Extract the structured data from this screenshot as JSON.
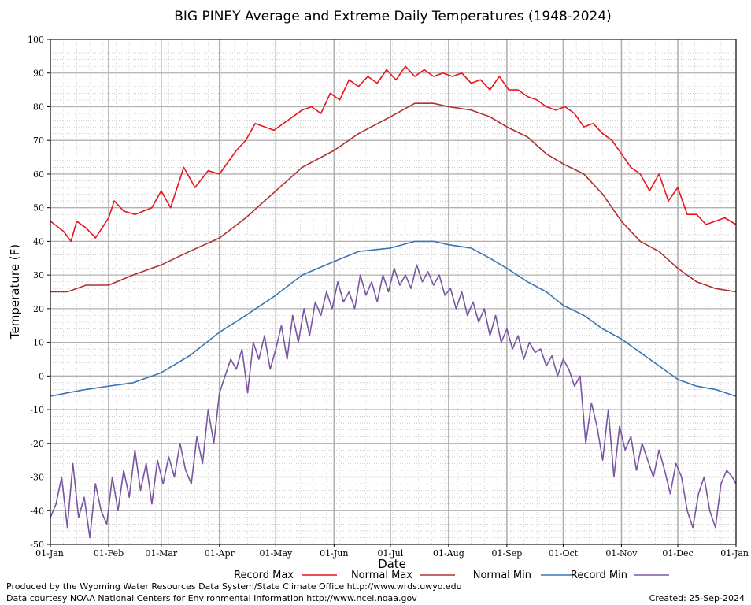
{
  "chart_data": {
    "type": "line",
    "title": "BIG PINEY Average and Extreme Daily Temperatures (1948-2024)",
    "xlabel": "Date",
    "ylabel": "Temperature (F)",
    "ylim": [
      -50,
      100
    ],
    "yticks": [
      -50,
      -40,
      -30,
      -20,
      -10,
      0,
      10,
      20,
      30,
      40,
      50,
      60,
      70,
      80,
      90,
      100
    ],
    "xlim": [
      1,
      366
    ],
    "xticks": [
      {
        "label": "01-Jan",
        "day": 1
      },
      {
        "label": "01-Feb",
        "day": 32
      },
      {
        "label": "01-Mar",
        "day": 60
      },
      {
        "label": "01-Apr",
        "day": 91
      },
      {
        "label": "01-May",
        "day": 121
      },
      {
        "label": "01-Jun",
        "day": 152
      },
      {
        "label": "01-Jul",
        "day": 182
      },
      {
        "label": "01-Aug",
        "day": 213
      },
      {
        "label": "01-Sep",
        "day": 244
      },
      {
        "label": "01-Oct",
        "day": 274
      },
      {
        "label": "01-Nov",
        "day": 305
      },
      {
        "label": "01-Dec",
        "day": 335
      },
      {
        "label": "01-Jan",
        "day": 366
      }
    ],
    "grid": true,
    "legend_position": "bottom",
    "series": [
      {
        "name": "Record Max",
        "color": "#e8141c",
        "x": [
          1,
          8,
          12,
          15,
          20,
          25,
          32,
          35,
          40,
          46,
          55,
          60,
          65,
          72,
          78,
          85,
          91,
          100,
          105,
          110,
          120,
          130,
          135,
          140,
          145,
          150,
          155,
          160,
          165,
          170,
          175,
          180,
          185,
          190,
          195,
          200,
          205,
          210,
          215,
          220,
          225,
          230,
          235,
          240,
          245,
          250,
          255,
          260,
          265,
          270,
          275,
          280,
          285,
          290,
          295,
          300,
          305,
          310,
          315,
          320,
          325,
          330,
          335,
          340,
          345,
          350,
          355,
          360,
          366
        ],
        "y": [
          46,
          43,
          40,
          46,
          44,
          41,
          47,
          52,
          49,
          48,
          50,
          55,
          50,
          62,
          56,
          61,
          60,
          67,
          70,
          75,
          73,
          77,
          79,
          80,
          78,
          84,
          82,
          88,
          86,
          89,
          87,
          91,
          88,
          92,
          89,
          91,
          89,
          90,
          89,
          90,
          87,
          88,
          85,
          89,
          85,
          85,
          83,
          82,
          80,
          79,
          80,
          78,
          74,
          75,
          72,
          70,
          66,
          62,
          60,
          55,
          60,
          52,
          56,
          48,
          48,
          45,
          46,
          47,
          45
        ]
      },
      {
        "name": "Normal Max",
        "color": "#b03030",
        "x": [
          1,
          10,
          20,
          32,
          45,
          60,
          75,
          91,
          105,
          121,
          135,
          152,
          165,
          182,
          195,
          205,
          213,
          225,
          235,
          244,
          255,
          265,
          274,
          285,
          295,
          305,
          315,
          325,
          335,
          345,
          355,
          366
        ],
        "y": [
          25,
          25,
          27,
          27,
          30,
          33,
          37,
          41,
          47,
          55,
          62,
          67,
          72,
          77,
          81,
          81,
          80,
          79,
          77,
          74,
          71,
          66,
          63,
          60,
          54,
          46,
          40,
          37,
          32,
          28,
          26,
          25
        ]
      },
      {
        "name": "Normal Min",
        "color": "#3a74b4",
        "x": [
          1,
          10,
          20,
          32,
          45,
          60,
          75,
          91,
          105,
          121,
          135,
          152,
          165,
          182,
          195,
          205,
          213,
          225,
          235,
          244,
          255,
          265,
          274,
          285,
          295,
          305,
          315,
          325,
          335,
          345,
          355,
          366
        ],
        "y": [
          -6,
          -5,
          -4,
          -3,
          -2,
          1,
          6,
          13,
          18,
          24,
          30,
          34,
          37,
          38,
          40,
          40,
          39,
          38,
          35,
          32,
          28,
          25,
          21,
          18,
          14,
          11,
          7,
          3,
          -1,
          -3,
          -4,
          -6
        ]
      },
      {
        "name": "Record Min",
        "color": "#7856a0",
        "x": [
          1,
          4,
          7,
          10,
          13,
          16,
          19,
          22,
          25,
          28,
          31,
          34,
          37,
          40,
          43,
          46,
          49,
          52,
          55,
          58,
          61,
          64,
          67,
          70,
          73,
          76,
          79,
          82,
          85,
          88,
          91,
          94,
          97,
          100,
          103,
          106,
          109,
          112,
          115,
          118,
          121,
          124,
          127,
          130,
          133,
          136,
          139,
          142,
          145,
          148,
          151,
          154,
          157,
          160,
          163,
          166,
          169,
          172,
          175,
          178,
          181,
          184,
          187,
          190,
          193,
          196,
          199,
          202,
          205,
          208,
          211,
          214,
          217,
          220,
          223,
          226,
          229,
          232,
          235,
          238,
          241,
          244,
          247,
          250,
          253,
          256,
          259,
          262,
          265,
          268,
          271,
          274,
          277,
          280,
          283,
          286,
          289,
          292,
          295,
          298,
          301,
          304,
          307,
          310,
          313,
          316,
          319,
          322,
          325,
          328,
          331,
          334,
          337,
          340,
          343,
          346,
          349,
          352,
          355,
          358,
          361,
          364,
          366
        ],
        "y": [
          -42,
          -38,
          -30,
          -45,
          -26,
          -42,
          -36,
          -48,
          -32,
          -40,
          -44,
          -30,
          -40,
          -28,
          -36,
          -22,
          -34,
          -26,
          -38,
          -25,
          -32,
          -24,
          -30,
          -20,
          -28,
          -32,
          -18,
          -26,
          -10,
          -20,
          -5,
          0,
          5,
          2,
          8,
          -5,
          10,
          5,
          12,
          2,
          8,
          15,
          5,
          18,
          10,
          20,
          12,
          22,
          18,
          25,
          20,
          28,
          22,
          25,
          20,
          30,
          24,
          28,
          22,
          30,
          25,
          32,
          27,
          30,
          26,
          33,
          28,
          31,
          27,
          30,
          24,
          26,
          20,
          25,
          18,
          22,
          16,
          20,
          12,
          18,
          10,
          14,
          8,
          12,
          5,
          10,
          7,
          8,
          3,
          6,
          0,
          5,
          2,
          -3,
          0,
          -20,
          -8,
          -15,
          -25,
          -10,
          -30,
          -15,
          -22,
          -18,
          -28,
          -20,
          -25,
          -30,
          -22,
          -28,
          -35,
          -26,
          -30,
          -40,
          -45,
          -35,
          -30,
          -40,
          -45,
          -32,
          -28,
          -30,
          -32
        ]
      }
    ]
  },
  "footer": {
    "produced_by": "Produced by the Wyoming Water Resources Data System/State Climate Office http://www.wrds.uwyo.edu",
    "data_courtesy": "Data courtesy NOAA National Centers for Environmental Information http://www.ncei.noaa.gov",
    "created": "Created:  25-Sep-2024"
  }
}
